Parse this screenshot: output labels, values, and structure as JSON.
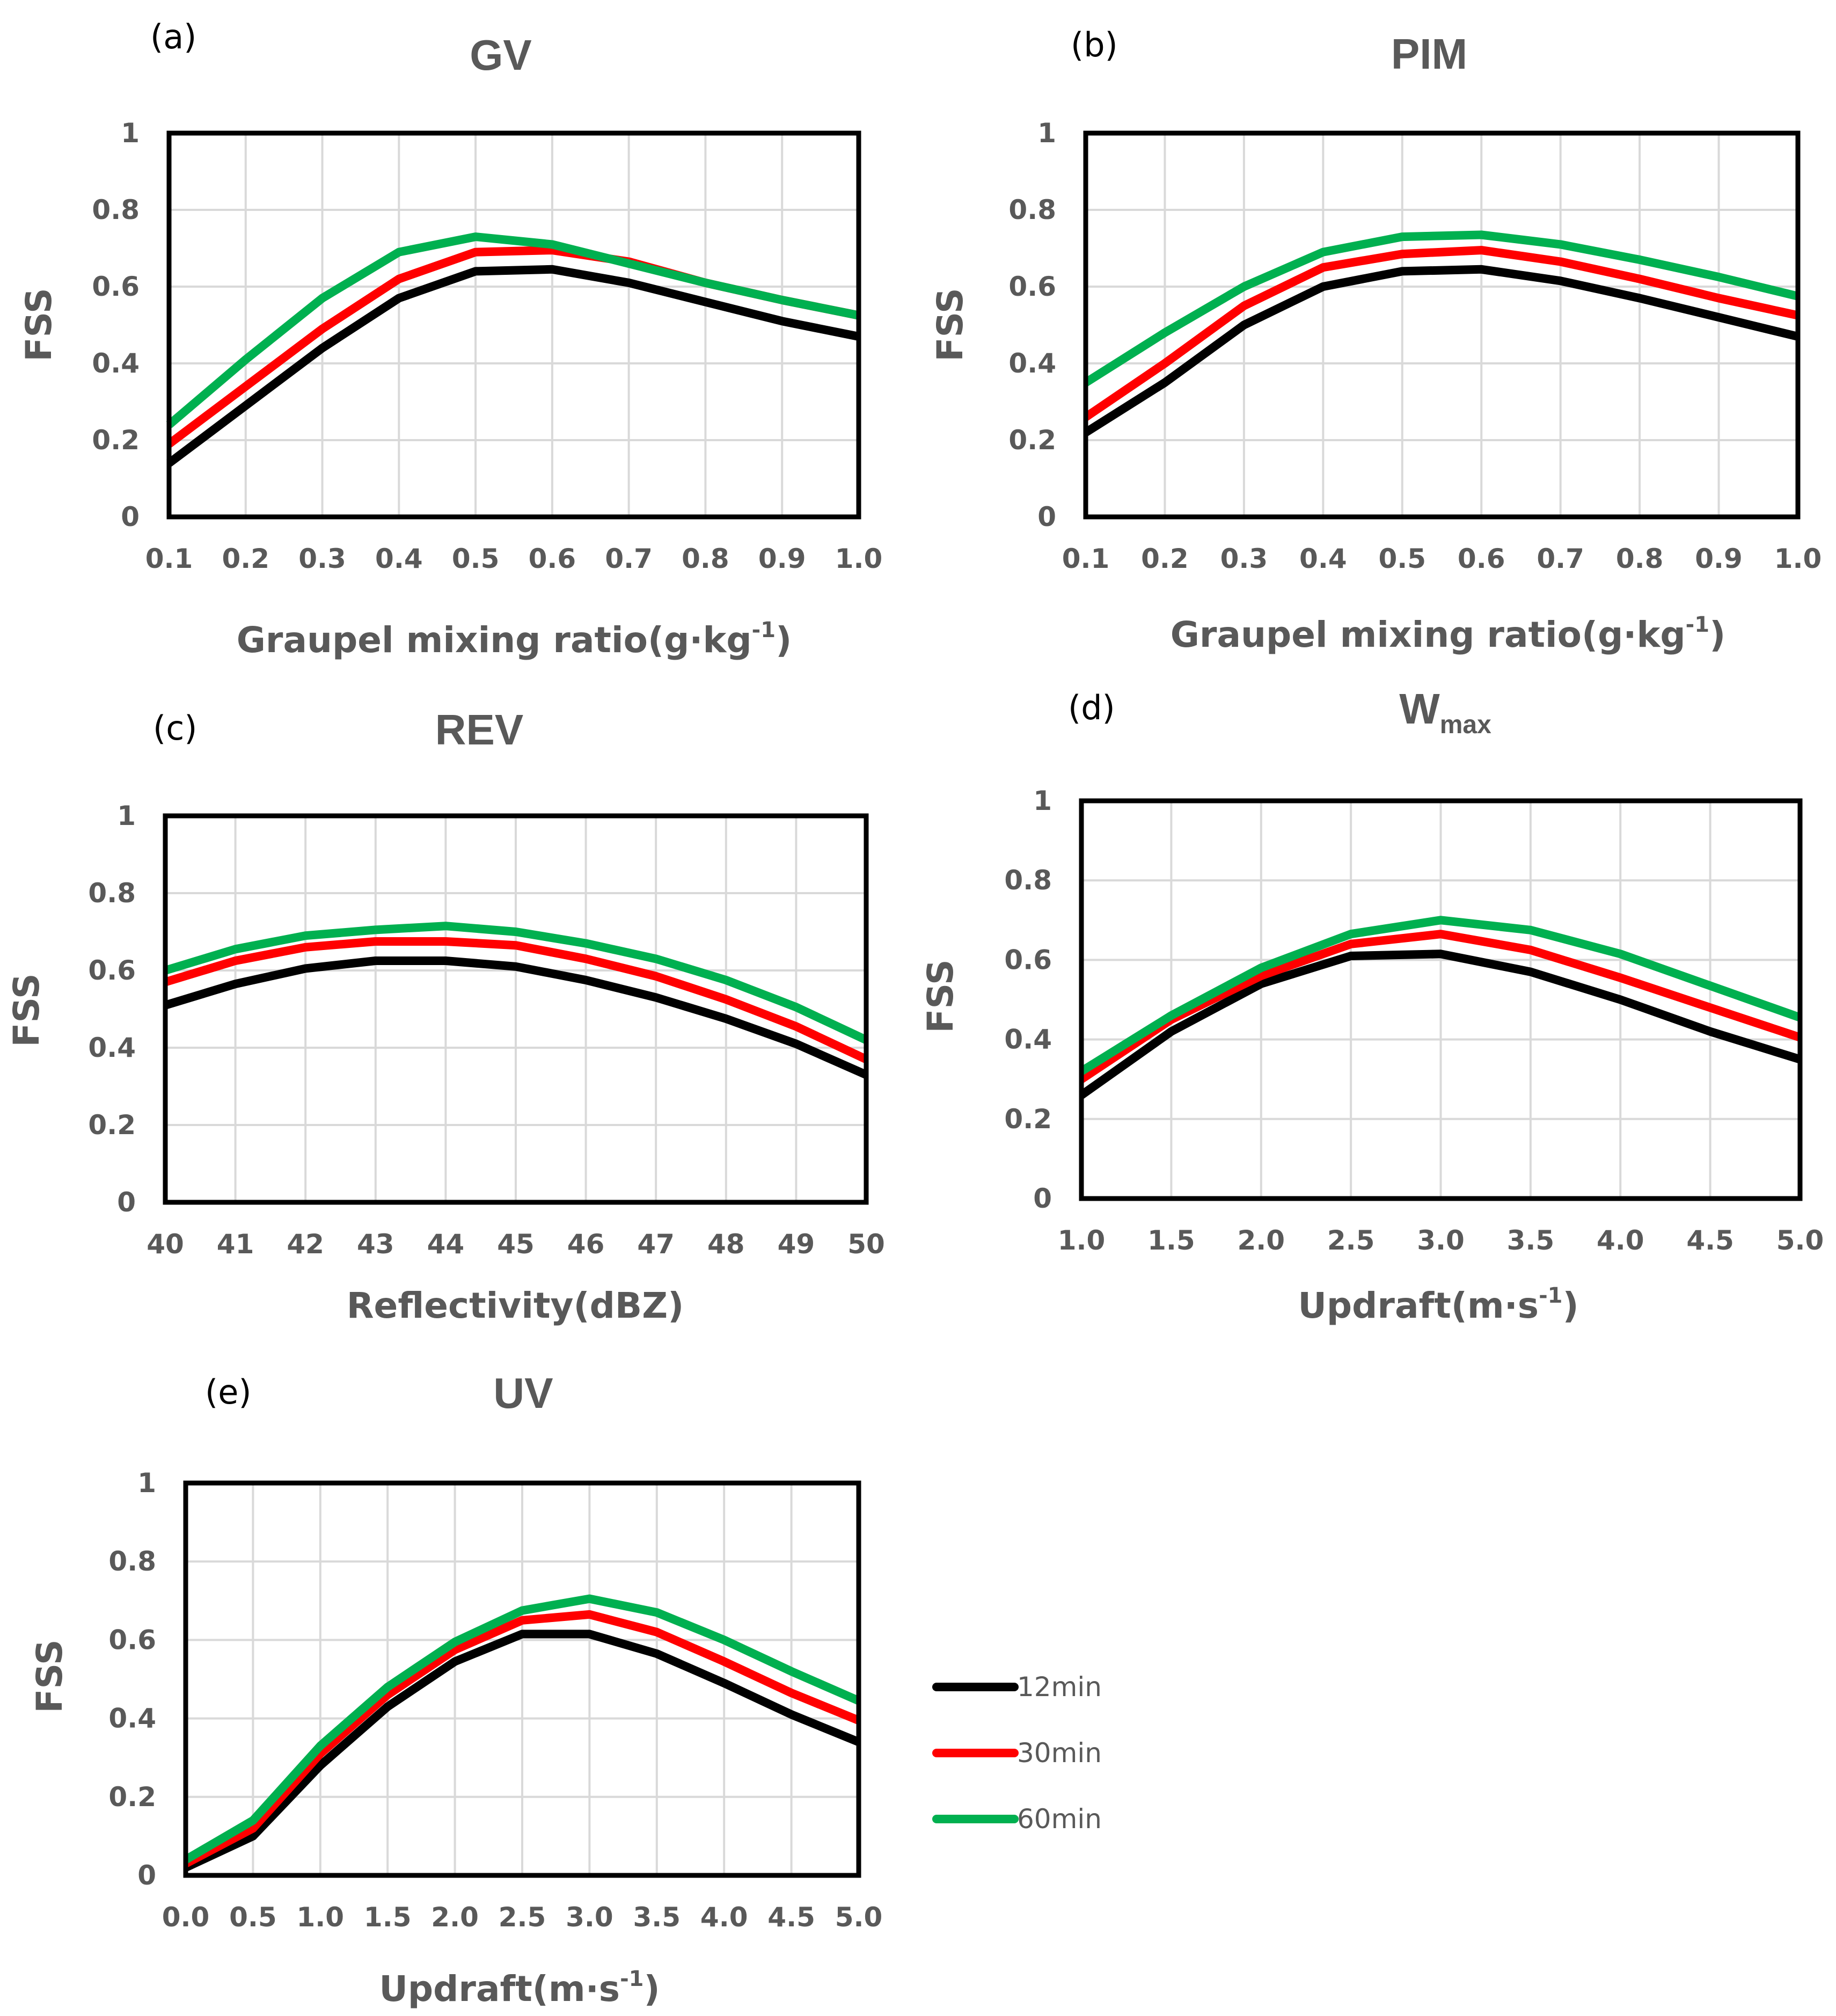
{
  "colors": {
    "12min": "#000000",
    "30min": "#ff0000",
    "60min": "#00b050",
    "grid": "#d9d9d9",
    "text": "#595959"
  },
  "legend": {
    "items": [
      {
        "label": "12min",
        "color": "#000000"
      },
      {
        "label": "30min",
        "color": "#ff0000"
      },
      {
        "label": "60min",
        "color": "#00b050"
      }
    ]
  },
  "chart_data": [
    {
      "panel": "(a)",
      "title": "GV",
      "title_sub": "",
      "type": "line",
      "xlabel": "Graupel mixing ratio(g·kg",
      "xlabel_sup": "-1",
      "xlabel_end": ")",
      "ylabel": "FSS",
      "ylim": [
        0,
        1
      ],
      "yticks": [
        "0",
        "0.2",
        "0.4",
        "0.6",
        "0.8",
        "1"
      ],
      "categories": [
        "0.1",
        "0.2",
        "0.3",
        "0.4",
        "0.5",
        "0.6",
        "0.7",
        "0.8",
        "0.9",
        "1.0"
      ],
      "series": [
        {
          "name": "12min",
          "values": [
            0.14,
            0.29,
            0.44,
            0.57,
            0.64,
            0.645,
            0.61,
            0.56,
            0.51,
            0.47
          ]
        },
        {
          "name": "30min",
          "values": [
            0.19,
            0.34,
            0.49,
            0.62,
            0.69,
            0.695,
            0.665,
            0.61,
            0.565,
            0.525
          ]
        },
        {
          "name": "60min",
          "values": [
            0.24,
            0.41,
            0.57,
            0.69,
            0.73,
            0.71,
            0.66,
            0.61,
            0.565,
            0.525
          ]
        }
      ]
    },
    {
      "panel": "(b)",
      "title": "PIM",
      "title_sub": "",
      "type": "line",
      "xlabel": "Graupel mixing ratio(g·kg",
      "xlabel_sup": "-1",
      "xlabel_end": ")",
      "ylabel": "FSS",
      "ylim": [
        0,
        1
      ],
      "yticks": [
        "0",
        "0.2",
        "0.4",
        "0.6",
        "0.8",
        "1"
      ],
      "categories": [
        "0.1",
        "0.2",
        "0.3",
        "0.4",
        "0.5",
        "0.6",
        "0.7",
        "0.8",
        "0.9",
        "1.0"
      ],
      "series": [
        {
          "name": "12min",
          "values": [
            0.22,
            0.35,
            0.5,
            0.6,
            0.64,
            0.645,
            0.615,
            0.57,
            0.52,
            0.47
          ]
        },
        {
          "name": "30min",
          "values": [
            0.26,
            0.4,
            0.55,
            0.65,
            0.685,
            0.695,
            0.665,
            0.62,
            0.57,
            0.525
          ]
        },
        {
          "name": "60min",
          "values": [
            0.35,
            0.48,
            0.6,
            0.69,
            0.73,
            0.735,
            0.71,
            0.67,
            0.625,
            0.575
          ]
        }
      ]
    },
    {
      "panel": "(c)",
      "title": "REV",
      "title_sub": "",
      "type": "line",
      "xlabel": "Reflectivity(dBZ)",
      "xlabel_sup": "",
      "xlabel_end": "",
      "ylabel": "FSS",
      "ylim": [
        0,
        1
      ],
      "yticks": [
        "0",
        "0.2",
        "0.4",
        "0.6",
        "0.8",
        "1"
      ],
      "categories": [
        "40",
        "41",
        "42",
        "43",
        "44",
        "45",
        "46",
        "47",
        "48",
        "49",
        "50"
      ],
      "series": [
        {
          "name": "12min",
          "values": [
            0.51,
            0.565,
            0.605,
            0.625,
            0.625,
            0.61,
            0.575,
            0.53,
            0.475,
            0.41,
            0.33
          ]
        },
        {
          "name": "30min",
          "values": [
            0.57,
            0.625,
            0.66,
            0.675,
            0.675,
            0.665,
            0.63,
            0.585,
            0.525,
            0.455,
            0.37
          ]
        },
        {
          "name": "60min",
          "values": [
            0.6,
            0.655,
            0.69,
            0.705,
            0.715,
            0.7,
            0.67,
            0.63,
            0.575,
            0.505,
            0.42
          ]
        }
      ]
    },
    {
      "panel": "(d)",
      "title": "W",
      "title_sub": "max",
      "type": "line",
      "xlabel": "Updraft(m·s",
      "xlabel_sup": "-1",
      "xlabel_end": ")",
      "ylabel": "FSS",
      "ylim": [
        0,
        1
      ],
      "yticks": [
        "0",
        "0.2",
        "0.4",
        "0.6",
        "0.8",
        "1"
      ],
      "categories": [
        "1.0",
        "1.5",
        "2.0",
        "2.5",
        "3.0",
        "3.5",
        "4.0",
        "4.5",
        "5.0"
      ],
      "series": [
        {
          "name": "12min",
          "values": [
            0.26,
            0.42,
            0.54,
            0.61,
            0.615,
            0.57,
            0.5,
            0.42,
            0.35
          ]
        },
        {
          "name": "30min",
          "values": [
            0.3,
            0.45,
            0.56,
            0.64,
            0.665,
            0.625,
            0.555,
            0.48,
            0.405
          ]
        },
        {
          "name": "60min",
          "values": [
            0.32,
            0.46,
            0.58,
            0.665,
            0.7,
            0.675,
            0.615,
            0.535,
            0.455
          ]
        }
      ]
    },
    {
      "panel": "(e)",
      "title": "UV",
      "title_sub": "",
      "type": "line",
      "xlabel": "Updraft(m·s",
      "xlabel_sup": "-1",
      "xlabel_end": ")",
      "ylabel": "FSS",
      "ylim": [
        0,
        1
      ],
      "yticks": [
        "0",
        "0.2",
        "0.4",
        "0.6",
        "0.8",
        "1"
      ],
      "categories": [
        "0.0",
        "0.5",
        "1.0",
        "1.5",
        "2.0",
        "2.5",
        "3.0",
        "3.5",
        "4.0",
        "4.5",
        "5.0"
      ],
      "series": [
        {
          "name": "12min",
          "values": [
            0.02,
            0.1,
            0.28,
            0.43,
            0.545,
            0.615,
            0.615,
            0.565,
            0.49,
            0.41,
            0.34
          ]
        },
        {
          "name": "30min",
          "values": [
            0.03,
            0.12,
            0.31,
            0.46,
            0.575,
            0.65,
            0.665,
            0.62,
            0.545,
            0.465,
            0.395
          ]
        },
        {
          "name": "60min",
          "values": [
            0.04,
            0.14,
            0.33,
            0.48,
            0.595,
            0.675,
            0.705,
            0.67,
            0.6,
            0.52,
            0.445
          ]
        }
      ]
    }
  ]
}
